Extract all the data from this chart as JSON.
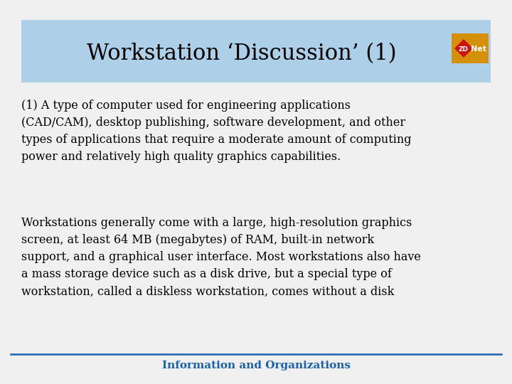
{
  "title": "Workstation ‘Discussion’ (1)",
  "title_color": "#000000",
  "title_fontsize": 22,
  "header_bg_color": "#aecfe8",
  "bg_color": "#f0f0f0",
  "footer_text": "Information and Organizations",
  "footer_color": "#1a5fa8",
  "footer_fontsize": 11,
  "footer_line_color": "#2060b0",
  "body_text1": "(1) A type of computer used for engineering applications\n(CAD/CAM), desktop publishing, software development, and other\ntypes of applications that require a moderate amount of computing\npower and relatively high quality graphics capabilities.",
  "body_text2": "Workstations generally come with a large, high-resolution graphics\nscreen, at least 64 MB (megabytes) of RAM, built-in network\nsupport, and a graphical user interface. Most workstations also have\na mass storage device such as a disk drive, but a special type of\nworkstation, called a diskless workstation, comes without a disk",
  "body_fontsize": 11.5,
  "body_color": "#000000",
  "zdnet_bg": "#d4900a",
  "zdnet_red": "#cc1111"
}
